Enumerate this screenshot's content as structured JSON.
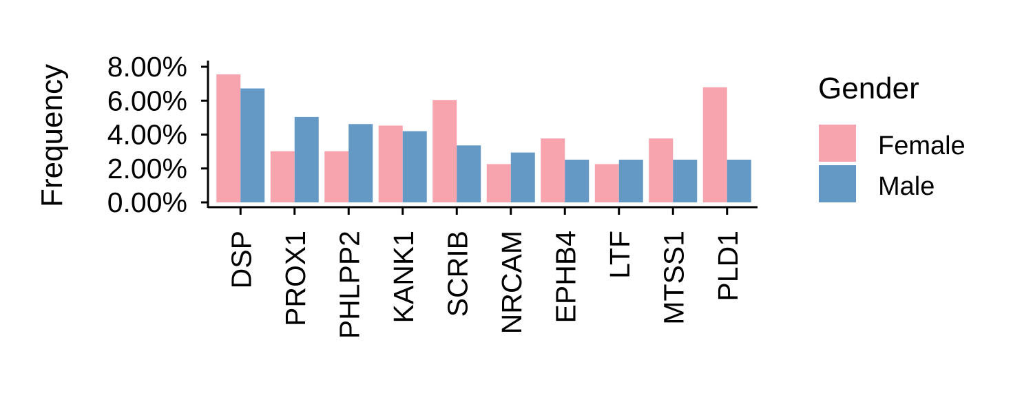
{
  "chart_data": {
    "type": "bar",
    "ylabel": "Frequency",
    "xlabel": "",
    "title": "",
    "categories": [
      "DSP",
      "PROX1",
      "PHLPP2",
      "KANK1",
      "SCRIB",
      "NRCAM",
      "EPHB4",
      "LTF",
      "MTSS1",
      "PLD1"
    ],
    "series": [
      {
        "name": "Female",
        "color": "#F7A4AE",
        "values": [
          7.55,
          3.02,
          3.02,
          4.53,
          6.04,
          2.26,
          3.77,
          2.26,
          3.77,
          6.79
        ]
      },
      {
        "name": "Male",
        "color": "#6499C6",
        "values": [
          6.72,
          5.04,
          4.62,
          4.2,
          3.36,
          2.94,
          2.52,
          2.52,
          2.52,
          2.52
        ]
      }
    ],
    "ylim": [
      0,
      8.4
    ],
    "yticks": [
      0,
      2,
      4,
      6,
      8
    ],
    "ytick_labels": [
      "0.00%",
      "2.00%",
      "4.00%",
      "6.00%",
      "8.00%"
    ],
    "legend": {
      "title": "Gender",
      "position": "right"
    },
    "grid": false
  }
}
